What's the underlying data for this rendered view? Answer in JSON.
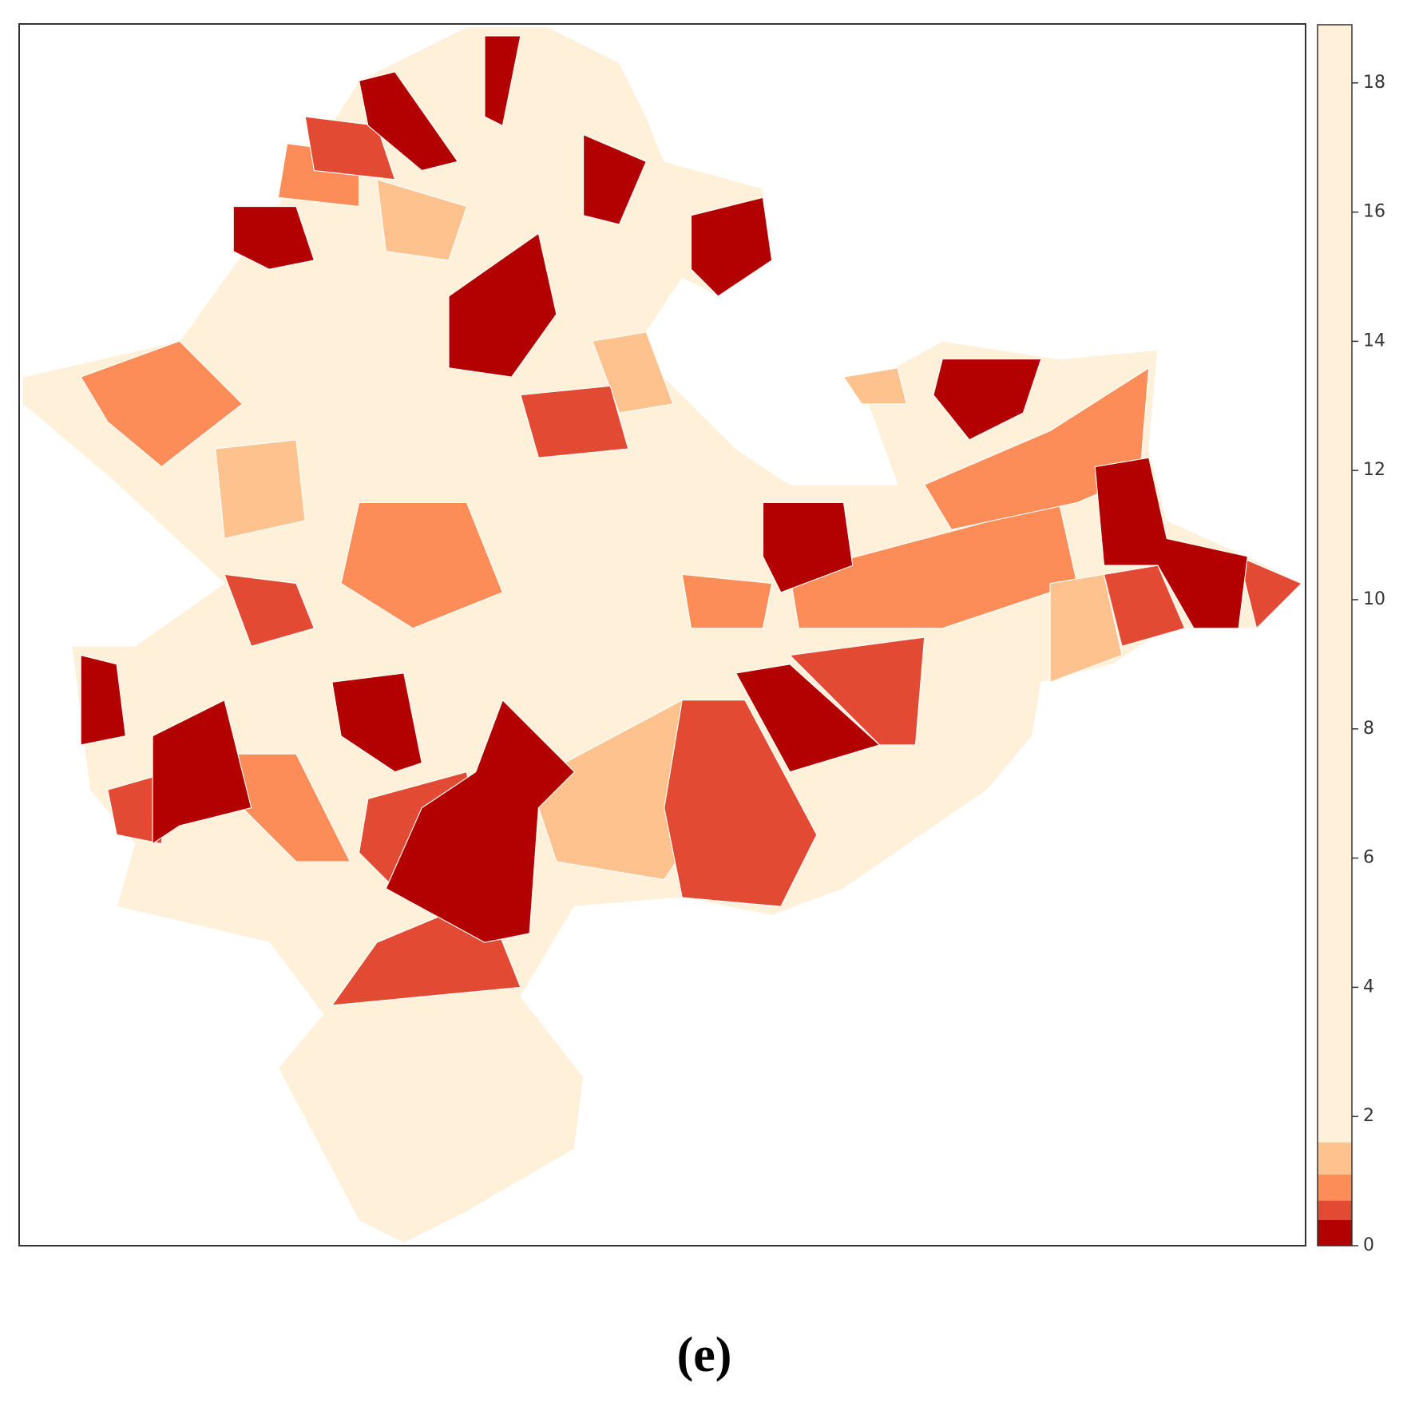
{
  "chart_data": {
    "type": "choropleth",
    "caption": "(e)",
    "bins": [
      0,
      0.4,
      0.7,
      1.1,
      1.6,
      18.9
    ],
    "colors": [
      "#b30000",
      "#e34a33",
      "#fc8d59",
      "#fdc28e",
      "#fef0d9"
    ],
    "ylim": [
      0,
      18.9
    ],
    "yticks": [
      0,
      2,
      4,
      6,
      8,
      10,
      12,
      14,
      16,
      18
    ]
  }
}
